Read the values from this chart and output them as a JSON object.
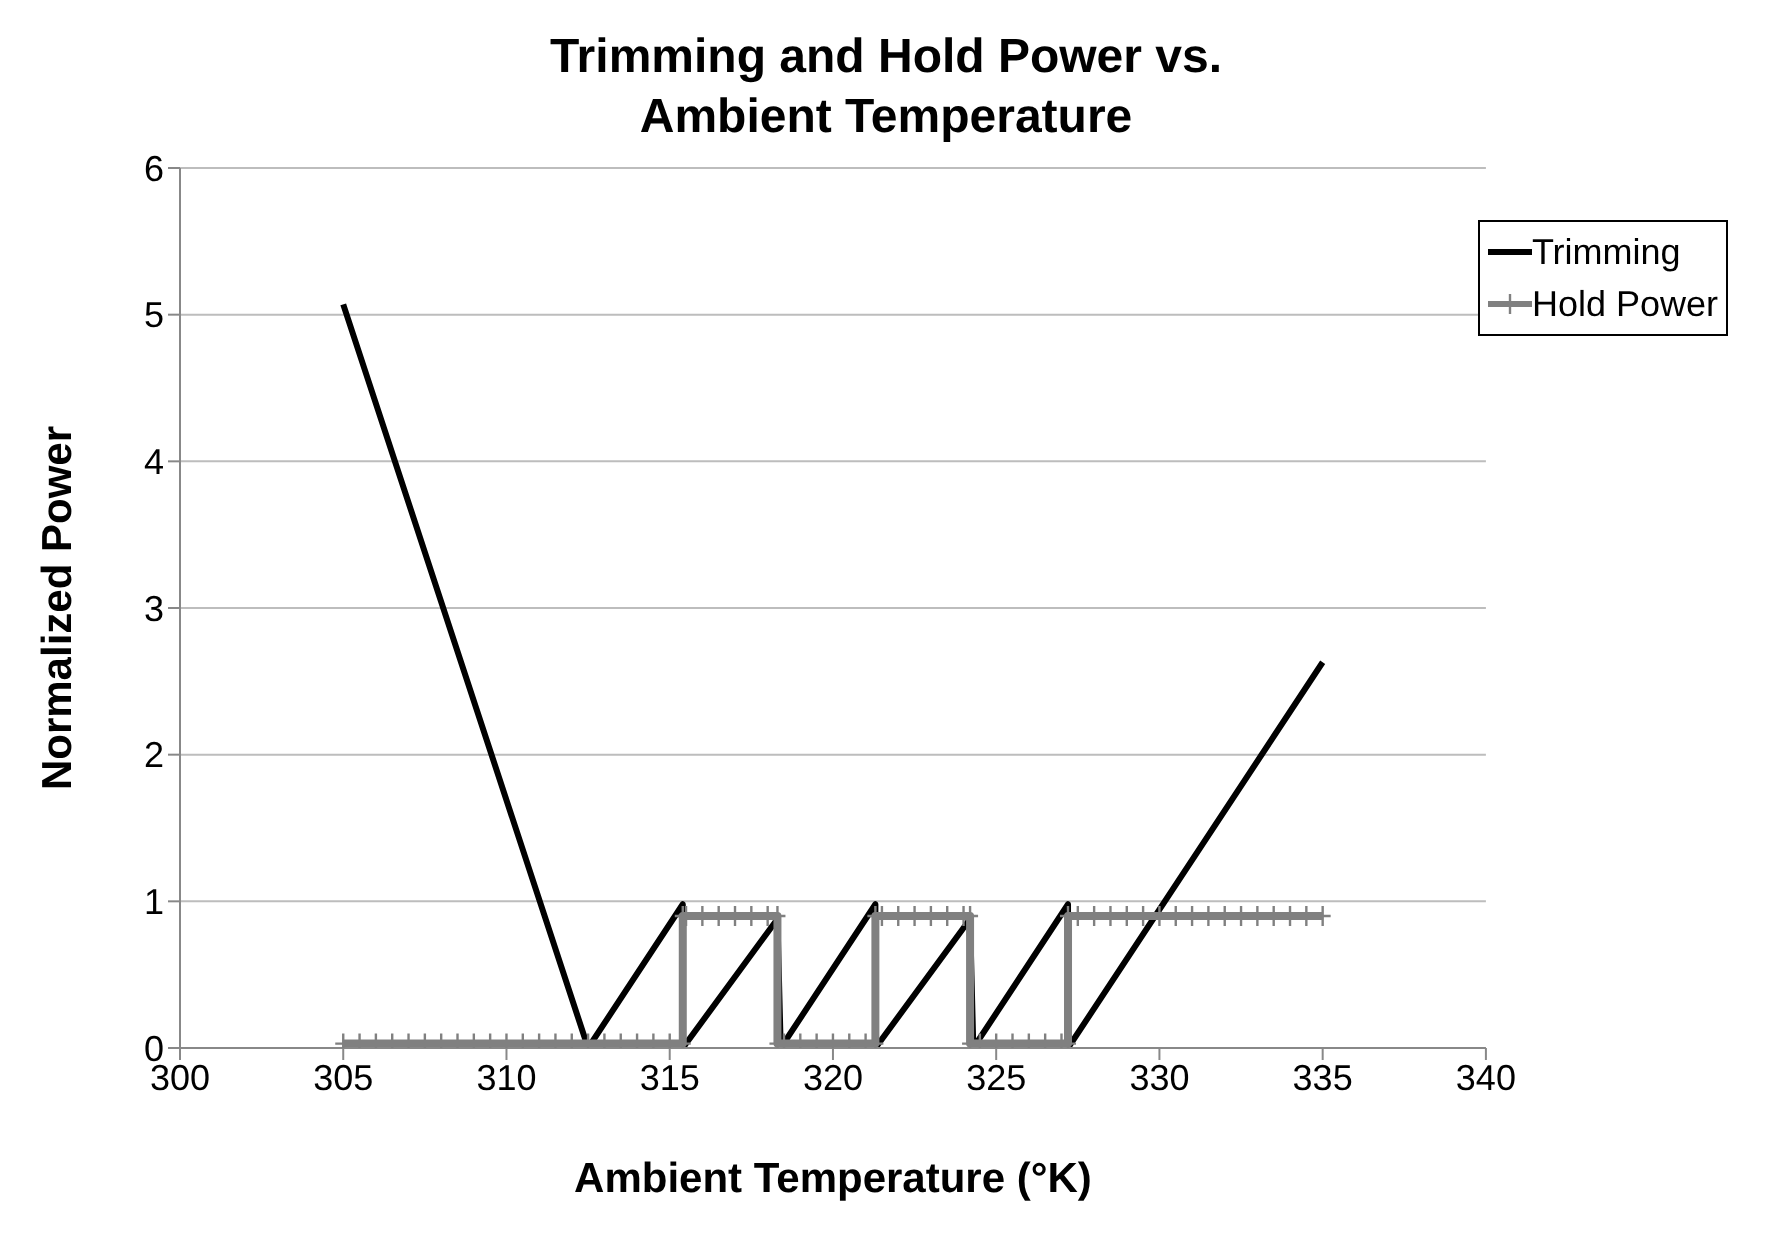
{
  "chart_data": {
    "type": "line",
    "title": "Trimming and Hold Power vs. Ambient Temperature",
    "xlabel": "Ambient Temperature (°K)",
    "ylabel": "Normalized Power",
    "xlim": [
      300,
      340
    ],
    "xticks": [
      300,
      305,
      310,
      315,
      320,
      325,
      330,
      335,
      340
    ],
    "ylim": [
      0,
      6
    ],
    "yticks": [
      0,
      1,
      2,
      3,
      4,
      5,
      6
    ],
    "grid": "y",
    "legend": "top right",
    "series": [
      {
        "name": "Trimming",
        "color": "#000000",
        "marker": "none",
        "x": [
          305,
          312.5,
          315.4,
          315.4,
          318.3,
          318.4,
          321.3,
          321.3,
          324.2,
          324.3,
          327.2,
          327.2,
          335
        ],
        "values": [
          5.07,
          0,
          0.98,
          0,
          0.88,
          0,
          0.98,
          0,
          0.88,
          0,
          0.98,
          0,
          2.63
        ]
      },
      {
        "name": "Hold Power",
        "color": "#808080",
        "marker": "cross",
        "x": [
          305,
          305.5,
          306,
          306.5,
          307,
          307.5,
          308,
          308.5,
          309,
          309.5,
          310,
          310.5,
          311,
          311.5,
          312,
          312.5,
          313,
          313.5,
          314,
          314.5,
          315,
          315.4,
          315.4,
          315.5,
          316,
          316.5,
          317,
          317.5,
          318,
          318.3,
          318.3,
          318.5,
          319,
          319.5,
          320,
          320.5,
          321,
          321.3,
          321.3,
          321.5,
          322,
          322.5,
          323,
          323.5,
          324,
          324.2,
          324.2,
          324.5,
          325,
          325.5,
          326,
          326.5,
          327,
          327.2,
          327.2,
          327.5,
          328,
          328.5,
          329,
          329.5,
          330,
          330.5,
          331,
          331.5,
          332,
          332.5,
          333,
          333.5,
          334,
          334.5,
          335
        ],
        "values": [
          0.03,
          0.03,
          0.03,
          0.03,
          0.03,
          0.03,
          0.03,
          0.03,
          0.03,
          0.03,
          0.03,
          0.03,
          0.03,
          0.03,
          0.03,
          0.03,
          0.03,
          0.03,
          0.03,
          0.03,
          0.03,
          0.03,
          0.9,
          0.9,
          0.9,
          0.9,
          0.9,
          0.9,
          0.9,
          0.9,
          0.03,
          0.03,
          0.03,
          0.03,
          0.03,
          0.03,
          0.03,
          0.03,
          0.9,
          0.9,
          0.9,
          0.9,
          0.9,
          0.9,
          0.9,
          0.9,
          0.03,
          0.03,
          0.03,
          0.03,
          0.03,
          0.03,
          0.03,
          0.03,
          0.9,
          0.9,
          0.9,
          0.9,
          0.9,
          0.9,
          0.9,
          0.9,
          0.9,
          0.9,
          0.9,
          0.9,
          0.9,
          0.9,
          0.9,
          0.9,
          0.9
        ]
      }
    ]
  }
}
